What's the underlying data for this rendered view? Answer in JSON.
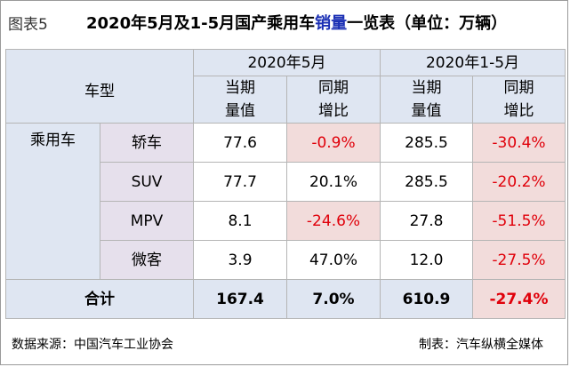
{
  "header": {
    "fig_label": "图表5",
    "title_part1": "2020年5月及1-5月国产乘用车",
    "title_highlight": "销量",
    "title_part2": "一览表（单位：万辆）"
  },
  "table": {
    "model_header": "车型",
    "period1": "2020年5月",
    "period2": "2020年1-5月",
    "col_current_line1": "当期",
    "col_current_line2": "量值",
    "col_yoy_line1": "同期",
    "col_yoy_line2": "增比",
    "category": "乘用车",
    "rows": [
      {
        "name": "轿车",
        "m_val": "77.6",
        "m_yoy": "-0.9%",
        "y_val": "285.5",
        "y_yoy": "-30.4%"
      },
      {
        "name": "SUV",
        "m_val": "77.7",
        "m_yoy": "20.1%",
        "y_val": "285.5",
        "y_yoy": "-20.2%"
      },
      {
        "name": "MPV",
        "m_val": "8.1",
        "m_yoy": "-24.6%",
        "y_val": "27.8",
        "y_yoy": "-51.5%"
      },
      {
        "name": "微客",
        "m_val": "3.9",
        "m_yoy": "47.0%",
        "y_val": "12.0",
        "y_yoy": "-27.5%"
      }
    ],
    "total": {
      "name": "合计",
      "m_val": "167.4",
      "m_yoy": "7.0%",
      "y_val": "610.9",
      "y_yoy": "-27.4%"
    }
  },
  "footer": {
    "source": "数据来源：中国汽车工业协会",
    "maker": "制表：汽车纵横全媒体"
  }
}
